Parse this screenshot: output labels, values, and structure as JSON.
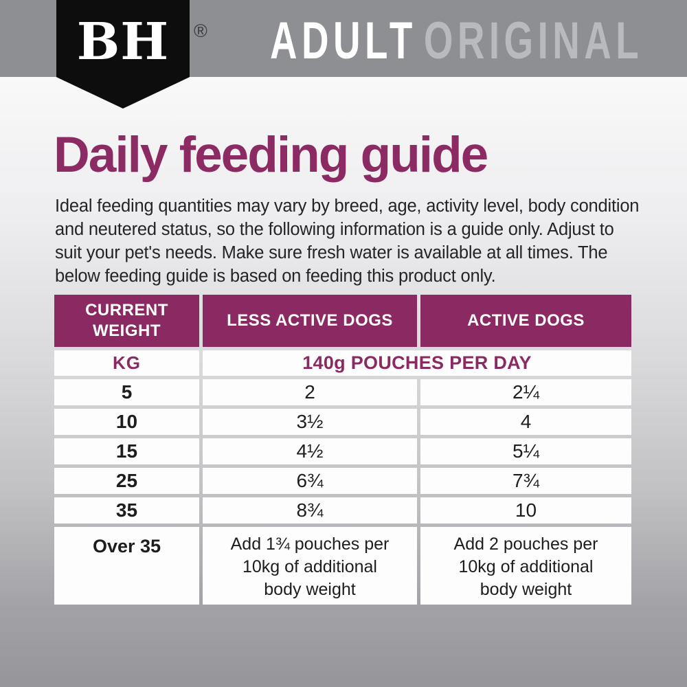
{
  "header": {
    "logo": "BH",
    "registered_mark": "®",
    "product_line": "ADULT",
    "product_variant": "ORIGINAL"
  },
  "page": {
    "title": "Daily feeding guide",
    "intro": "Ideal feeding quantities may vary by breed, age, activity level, body condition and neutered status, so the following information is a guide only. Adjust to suit your pet's needs. Make sure fresh water is available at all times. The below feeding guide is based on feeding this product only."
  },
  "colors": {
    "accent_purple": "#8b2a62",
    "header_bar_gray": "#8d8f93",
    "variant_text_gray": "#b9babf",
    "banner_black": "#0d0d0d"
  },
  "table": {
    "columns": [
      "CURRENT WEIGHT",
      "LESS ACTIVE DOGS",
      "ACTIVE DOGS"
    ],
    "unit_row": {
      "kg_label": "KG",
      "unit_label": "140g POUCHES PER DAY"
    },
    "rows": [
      {
        "weight": "5",
        "less_active": "2",
        "active": "2¼"
      },
      {
        "weight": "10",
        "less_active": "3½",
        "active": "4"
      },
      {
        "weight": "15",
        "less_active": "4½",
        "active": "5¼"
      },
      {
        "weight": "25",
        "less_active": "6¾",
        "active": "7¾"
      },
      {
        "weight": "35",
        "less_active": "8¾",
        "active": "10"
      }
    ],
    "over_row": {
      "weight": "Over 35",
      "less_active": "Add 1¾ pouches per 10kg of additional body weight",
      "active": "Add 2 pouches per 10kg of additional body weight"
    }
  }
}
